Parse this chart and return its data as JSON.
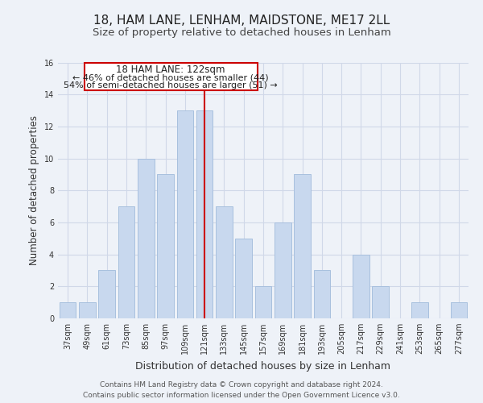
{
  "title": "18, HAM LANE, LENHAM, MAIDSTONE, ME17 2LL",
  "subtitle": "Size of property relative to detached houses in Lenham",
  "xlabel": "Distribution of detached houses by size in Lenham",
  "ylabel": "Number of detached properties",
  "bar_labels": [
    "37sqm",
    "49sqm",
    "61sqm",
    "73sqm",
    "85sqm",
    "97sqm",
    "109sqm",
    "121sqm",
    "133sqm",
    "145sqm",
    "157sqm",
    "169sqm",
    "181sqm",
    "193sqm",
    "205sqm",
    "217sqm",
    "229sqm",
    "241sqm",
    "253sqm",
    "265sqm",
    "277sqm"
  ],
  "bar_values": [
    1,
    1,
    3,
    7,
    10,
    9,
    13,
    13,
    7,
    5,
    2,
    6,
    9,
    3,
    0,
    4,
    2,
    0,
    1,
    0,
    1
  ],
  "bar_color": "#c8d8ee",
  "bar_edge_color": "#a8c0de",
  "highlight_bar_index": 7,
  "highlight_color": "#cc0000",
  "ylim": [
    0,
    16
  ],
  "yticks": [
    0,
    2,
    4,
    6,
    8,
    10,
    12,
    14,
    16
  ],
  "annotation_title": "18 HAM LANE: 122sqm",
  "annotation_line1": "← 46% of detached houses are smaller (44)",
  "annotation_line2": "54% of semi-detached houses are larger (51) →",
  "annotation_box_color": "#ffffff",
  "annotation_box_edge": "#cc0000",
  "footer_line1": "Contains HM Land Registry data © Crown copyright and database right 2024.",
  "footer_line2": "Contains public sector information licensed under the Open Government Licence v3.0.",
  "background_color": "#eef2f8",
  "plot_bg_color": "#eef2f8",
  "grid_color": "#d0d8e8",
  "title_fontsize": 11,
  "subtitle_fontsize": 9.5,
  "tick_fontsize": 7,
  "ylabel_fontsize": 8.5,
  "xlabel_fontsize": 9,
  "footer_fontsize": 6.5,
  "annotation_fontsize": 8,
  "annotation_title_fontsize": 8.5
}
